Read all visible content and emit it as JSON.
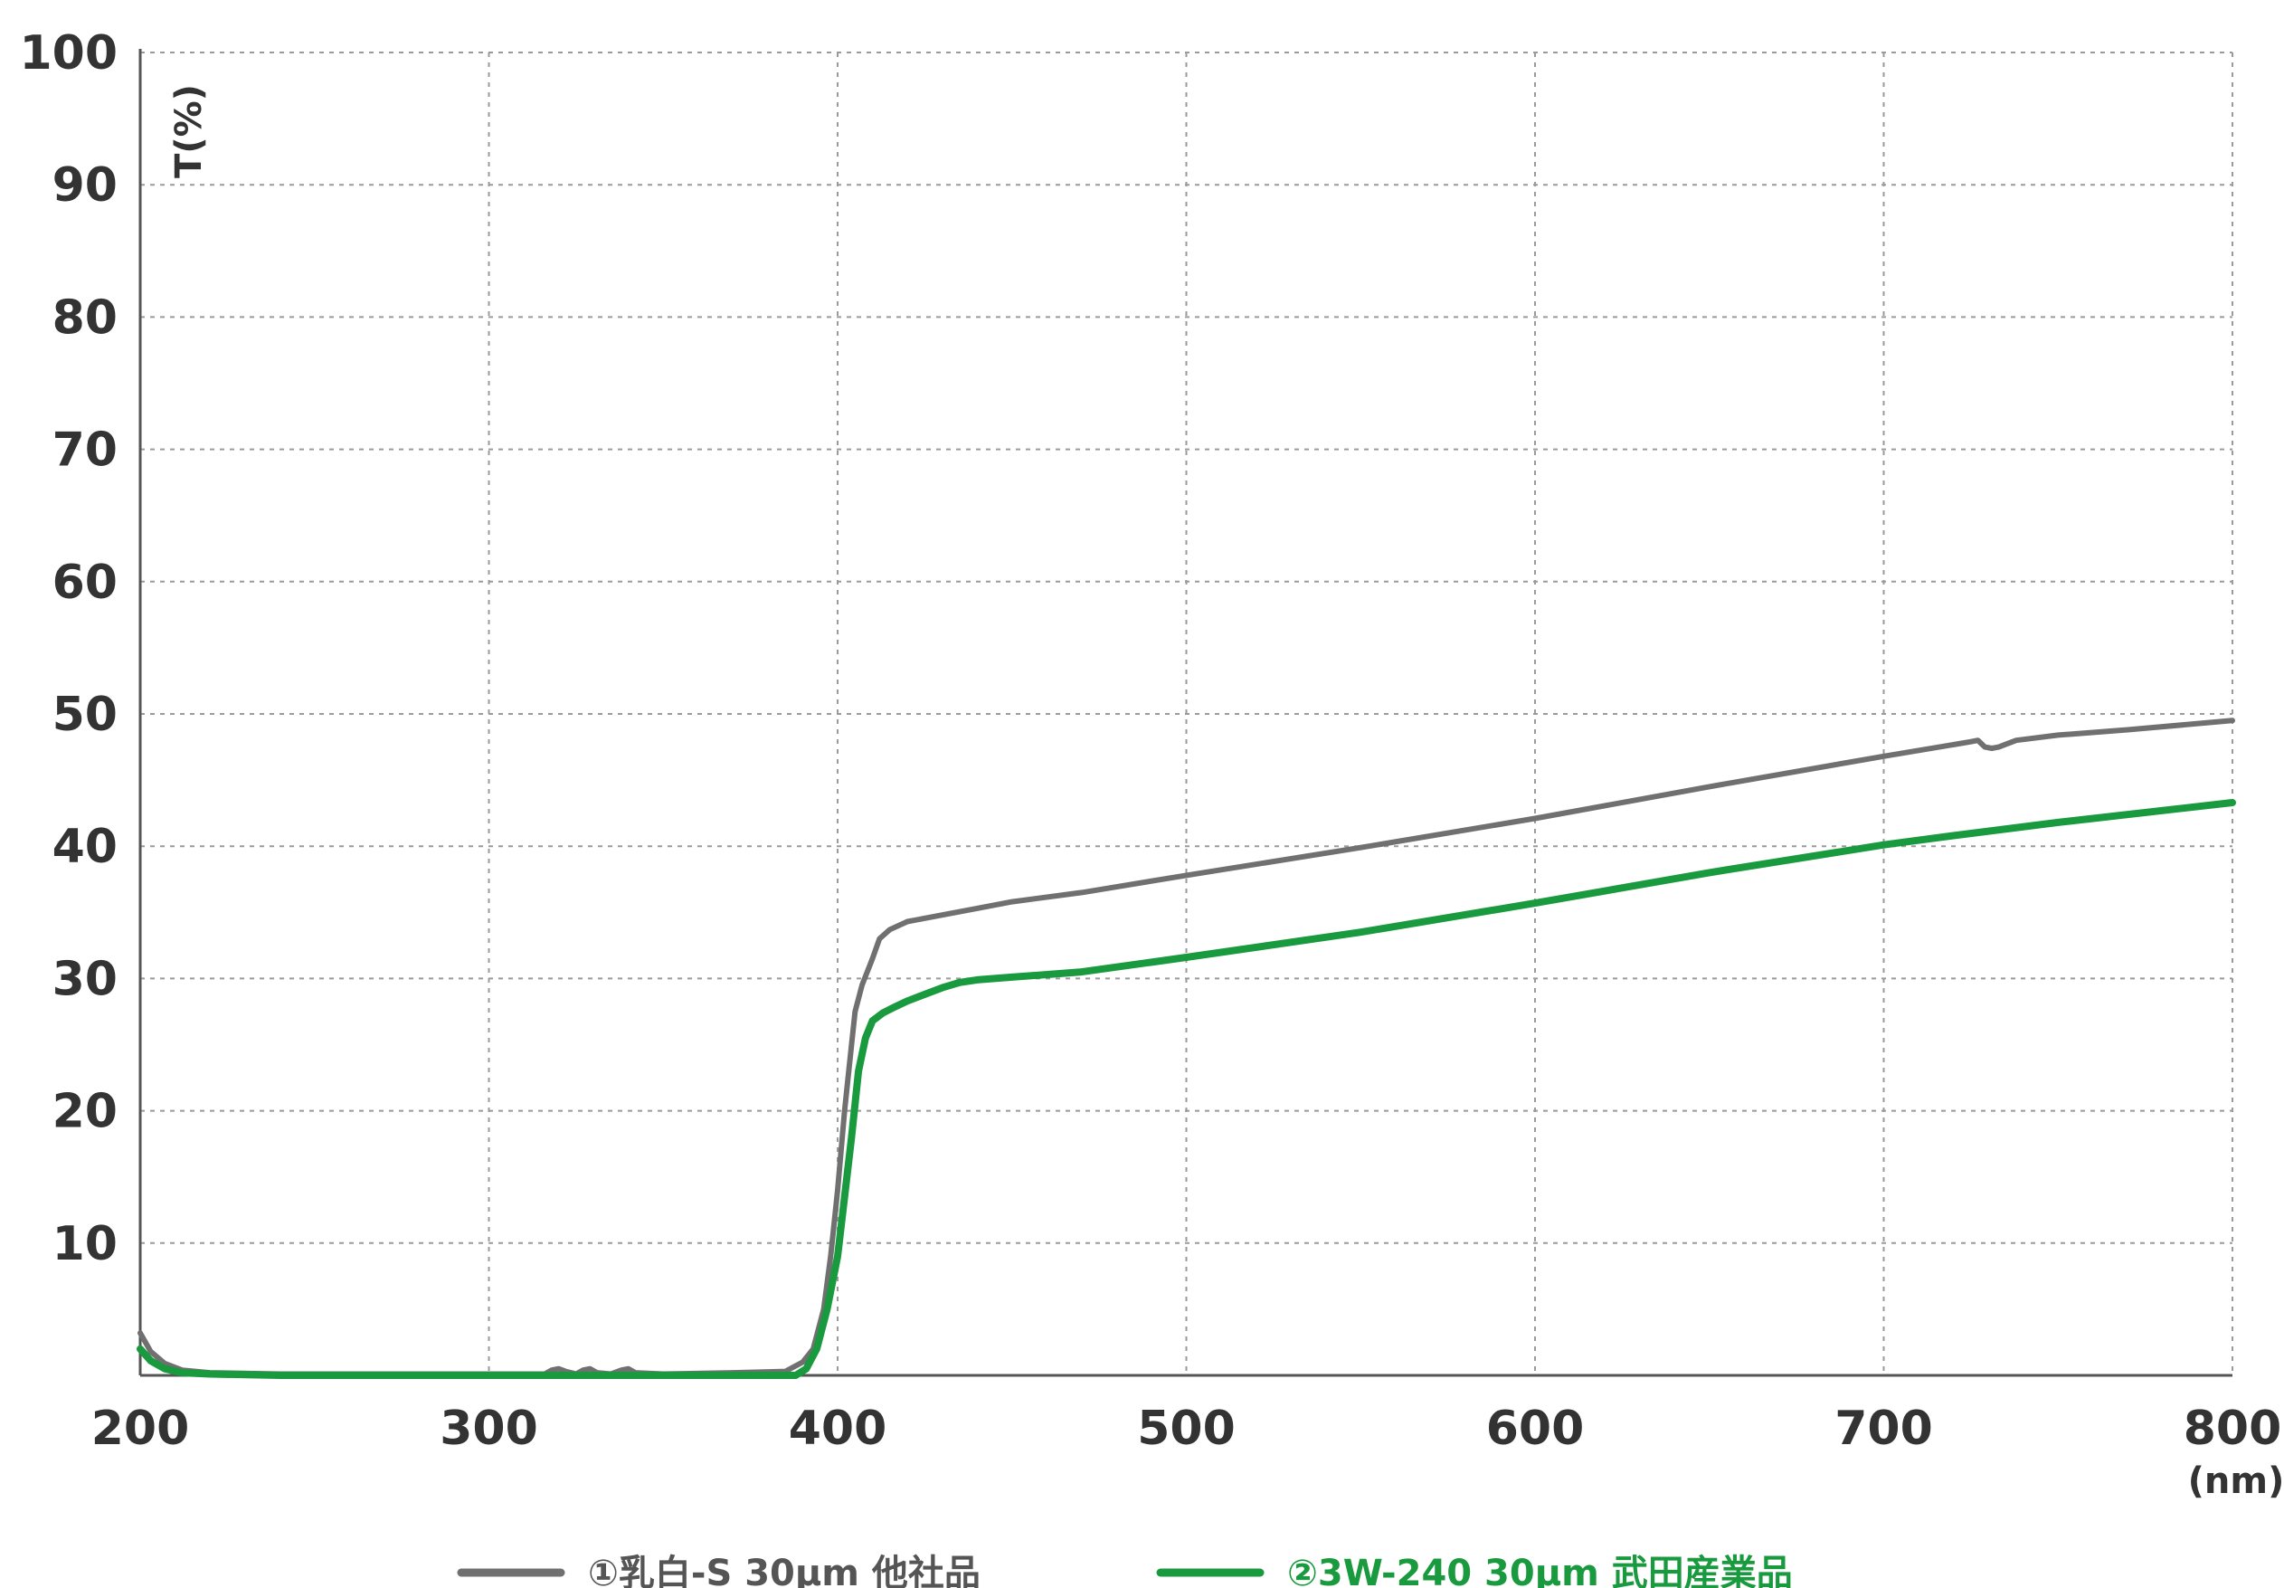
{
  "chart_data": {
    "type": "line",
    "title": "",
    "xlabel": "(nm)",
    "ylabel": "T(%)",
    "xlim": [
      200,
      800
    ],
    "ylim": [
      0,
      100
    ],
    "xticks": [
      200,
      300,
      400,
      500,
      600,
      700,
      800
    ],
    "yticks": [
      10,
      20,
      30,
      40,
      50,
      60,
      70,
      80,
      90,
      100
    ],
    "grid": true,
    "legend": "bottom",
    "series": [
      {
        "name": "①乳白-S 30μm 他社品",
        "color": "#707070",
        "x": [
          200,
          203,
          207,
          212,
          220,
          240,
          260,
          280,
          300,
          316,
          318,
          320,
          322,
          325,
          327,
          329,
          331,
          335,
          338,
          340,
          342,
          350,
          370,
          385,
          390,
          393,
          396,
          398,
          400,
          402,
          404,
          405,
          407,
          410,
          412,
          415,
          420,
          430,
          440,
          450,
          470,
          500,
          550,
          600,
          650,
          700,
          725,
          727,
          729,
          731,
          733,
          735,
          738,
          750,
          770,
          800
        ],
        "y": [
          3.2,
          1.8,
          0.9,
          0.4,
          0.2,
          0.1,
          0.1,
          0.1,
          0.1,
          0.1,
          0.4,
          0.5,
          0.3,
          0.1,
          0.4,
          0.5,
          0.2,
          0.1,
          0.4,
          0.5,
          0.2,
          0.1,
          0.2,
          0.3,
          1.0,
          2.0,
          5.0,
          9.0,
          14.0,
          20.0,
          25.0,
          27.5,
          29.5,
          31.5,
          33.0,
          33.7,
          34.3,
          34.8,
          35.3,
          35.8,
          36.5,
          37.8,
          39.9,
          42.1,
          44.5,
          46.8,
          47.9,
          48.0,
          47.5,
          47.4,
          47.5,
          47.7,
          48.0,
          48.4,
          48.8,
          49.5
        ]
      },
      {
        "name": "②3W-240 30μm 武田産業品",
        "color": "#1a9a3e",
        "x": [
          200,
          203,
          207,
          212,
          220,
          240,
          260,
          280,
          300,
          320,
          340,
          360,
          380,
          388,
          391,
          394,
          397,
          400,
          402,
          404,
          406,
          408,
          410,
          413,
          416,
          420,
          425,
          430,
          435,
          440,
          450,
          470,
          500,
          550,
          600,
          650,
          700,
          720,
          750,
          800
        ],
        "y": [
          2.0,
          1.1,
          0.5,
          0.2,
          0.1,
          0.0,
          0.0,
          0.0,
          0.0,
          0.0,
          0.0,
          0.0,
          0.0,
          0.0,
          0.5,
          2.0,
          5.0,
          9.0,
          13.5,
          18.0,
          23.0,
          25.5,
          26.8,
          27.4,
          27.8,
          28.3,
          28.8,
          29.3,
          29.7,
          29.9,
          30.1,
          30.5,
          31.6,
          33.5,
          35.7,
          38.0,
          40.1,
          40.8,
          41.8,
          43.3
        ]
      }
    ]
  }
}
